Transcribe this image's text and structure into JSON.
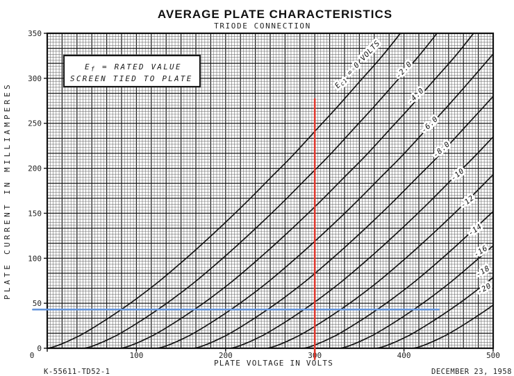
{
  "page": {
    "title": "AVERAGE PLATE CHARACTERISTICS",
    "subtitle": "TRIODE CONNECTION"
  },
  "note": {
    "line1_pre": "E",
    "line1_sub": "f",
    "line1_post": " = RATED VALUE",
    "line2": "SCREEN TIED TO PLATE"
  },
  "footer": {
    "drawing_number": "K-55611-TD52-1",
    "date": "DECEMBER 23, 1958"
  },
  "colors": {
    "background": "#ffffff",
    "curve": "#141414",
    "grid_minor": "#707070",
    "grid_major": "#1c1c1c",
    "frame": "#111111",
    "red_cursor": "#e0392e",
    "blue_cursor": "#6495dc"
  },
  "chart_data": {
    "type": "line",
    "title": "AVERAGE PLATE CHARACTERISTICS",
    "subtitle": "TRIODE CONNECTION",
    "xlabel": "PLATE VOLTAGE IN VOLTS",
    "ylabel": "PLATE CURRENT IN MILLIAMPERES",
    "xlim": [
      0,
      500
    ],
    "ylim": [
      0,
      350
    ],
    "xticks": [
      0,
      100,
      200,
      300,
      400,
      500
    ],
    "yticks": [
      0,
      50,
      100,
      150,
      200,
      250,
      300,
      350
    ],
    "grid": {
      "style": "fine graph paper",
      "minor_per_major": 5,
      "x_minor_divisions": 150,
      "y_minor_divisions": 105
    },
    "legend_note": "curve labels written along each curve; Ec1 is control-grid voltage",
    "series": [
      {
        "name": "Ec1 = 0 VOLTS",
        "ec1_volts": 0,
        "label_parts": {
          "pre": "E",
          "sub": "c1",
          "post": " = 0 VOLTS"
        },
        "points": [
          [
            0,
            0
          ],
          [
            5,
            1
          ],
          [
            10,
            2.5
          ],
          [
            20,
            6.4
          ],
          [
            30,
            11
          ],
          [
            40,
            16
          ],
          [
            60,
            28
          ],
          [
            80,
            41
          ],
          [
            100,
            55
          ],
          [
            125,
            74
          ],
          [
            150,
            95
          ],
          [
            175,
            117
          ],
          [
            200,
            140
          ],
          [
            225,
            164
          ],
          [
            250,
            189
          ],
          [
            275,
            214
          ],
          [
            300,
            241
          ],
          [
            325,
            268
          ],
          [
            350,
            296
          ],
          [
            375,
            324
          ],
          [
            396,
            350
          ]
        ]
      },
      {
        "name": "-2.0",
        "ec1_volts": -2,
        "points": [
          [
            41,
            0
          ],
          [
            46,
            1
          ],
          [
            51,
            2.5
          ],
          [
            61,
            6.4
          ],
          [
            71,
            11
          ],
          [
            81,
            16
          ],
          [
            101,
            28
          ],
          [
            121,
            41
          ],
          [
            141,
            55
          ],
          [
            166,
            74
          ],
          [
            191,
            95
          ],
          [
            216,
            117
          ],
          [
            241,
            140
          ],
          [
            266,
            164
          ],
          [
            291,
            189
          ],
          [
            316,
            214
          ],
          [
            341,
            241
          ],
          [
            366,
            268
          ],
          [
            391,
            296
          ],
          [
            416,
            324
          ],
          [
            437,
            350
          ]
        ]
      },
      {
        "name": "-4.0",
        "ec1_volts": -4,
        "points": [
          [
            82,
            0
          ],
          [
            87,
            1
          ],
          [
            92,
            2.5
          ],
          [
            102,
            6.4
          ],
          [
            112,
            11
          ],
          [
            122,
            16
          ],
          [
            142,
            28
          ],
          [
            162,
            41
          ],
          [
            182,
            55
          ],
          [
            207,
            74
          ],
          [
            232,
            95
          ],
          [
            257,
            117
          ],
          [
            282,
            140
          ],
          [
            307,
            164
          ],
          [
            332,
            189
          ],
          [
            357,
            214
          ],
          [
            382,
            241
          ],
          [
            407,
            268
          ],
          [
            432,
            296
          ],
          [
            457,
            324
          ],
          [
            478,
            350
          ]
        ]
      },
      {
        "name": "-6.0",
        "ec1_volts": -6,
        "points": [
          [
            123,
            0
          ],
          [
            128,
            1
          ],
          [
            133,
            2.5
          ],
          [
            143,
            6.4
          ],
          [
            153,
            11
          ],
          [
            163,
            16
          ],
          [
            183,
            28
          ],
          [
            203,
            41
          ],
          [
            223,
            55
          ],
          [
            248,
            74
          ],
          [
            273,
            95
          ],
          [
            298,
            117
          ],
          [
            323,
            140
          ],
          [
            348,
            164
          ],
          [
            373,
            189
          ],
          [
            398,
            214
          ],
          [
            423,
            241
          ],
          [
            448,
            268
          ],
          [
            473,
            296
          ],
          [
            500,
            327
          ]
        ]
      },
      {
        "name": "-8.0",
        "ec1_volts": -8,
        "points": [
          [
            164,
            0
          ],
          [
            169,
            1
          ],
          [
            174,
            2.5
          ],
          [
            184,
            6.4
          ],
          [
            194,
            11
          ],
          [
            204,
            16
          ],
          [
            224,
            28
          ],
          [
            244,
            41
          ],
          [
            264,
            55
          ],
          [
            289,
            74
          ],
          [
            314,
            95
          ],
          [
            339,
            117
          ],
          [
            364,
            140
          ],
          [
            389,
            164
          ],
          [
            414,
            189
          ],
          [
            439,
            214
          ],
          [
            464,
            241
          ],
          [
            489,
            268
          ],
          [
            500,
            280
          ]
        ]
      },
      {
        "name": "-10",
        "ec1_volts": -10,
        "points": [
          [
            205,
            0
          ],
          [
            210,
            1
          ],
          [
            215,
            2.5
          ],
          [
            225,
            6.4
          ],
          [
            235,
            11
          ],
          [
            245,
            16
          ],
          [
            265,
            28
          ],
          [
            285,
            41
          ],
          [
            305,
            55
          ],
          [
            330,
            74
          ],
          [
            355,
            95
          ],
          [
            380,
            117
          ],
          [
            405,
            140
          ],
          [
            430,
            164
          ],
          [
            455,
            189
          ],
          [
            480,
            214
          ],
          [
            500,
            235
          ]
        ]
      },
      {
        "name": "-12",
        "ec1_volts": -12,
        "points": [
          [
            246,
            0
          ],
          [
            251,
            1
          ],
          [
            256,
            2.5
          ],
          [
            266,
            6.4
          ],
          [
            276,
            11
          ],
          [
            286,
            16
          ],
          [
            306,
            28
          ],
          [
            326,
            41
          ],
          [
            346,
            55
          ],
          [
            371,
            74
          ],
          [
            396,
            95
          ],
          [
            421,
            117
          ],
          [
            446,
            140
          ],
          [
            471,
            164
          ],
          [
            496,
            189
          ],
          [
            500,
            193
          ]
        ]
      },
      {
        "name": "-14",
        "ec1_volts": -14,
        "points": [
          [
            287,
            0
          ],
          [
            292,
            1
          ],
          [
            297,
            2.5
          ],
          [
            307,
            6.4
          ],
          [
            317,
            11
          ],
          [
            327,
            16
          ],
          [
            347,
            28
          ],
          [
            367,
            41
          ],
          [
            387,
            55
          ],
          [
            412,
            74
          ],
          [
            437,
            95
          ],
          [
            462,
            117
          ],
          [
            487,
            140
          ],
          [
            500,
            152
          ]
        ]
      },
      {
        "name": "-16",
        "ec1_volts": -16,
        "points": [
          [
            328,
            0
          ],
          [
            333,
            1
          ],
          [
            338,
            2.5
          ],
          [
            348,
            6.4
          ],
          [
            358,
            11
          ],
          [
            368,
            16
          ],
          [
            388,
            28
          ],
          [
            408,
            41
          ],
          [
            428,
            55
          ],
          [
            453,
            74
          ],
          [
            478,
            95
          ],
          [
            500,
            114
          ]
        ]
      },
      {
        "name": "-18",
        "ec1_volts": -18,
        "points": [
          [
            369,
            0
          ],
          [
            374,
            1
          ],
          [
            379,
            2.5
          ],
          [
            389,
            6.4
          ],
          [
            399,
            11
          ],
          [
            409,
            16
          ],
          [
            429,
            28
          ],
          [
            449,
            41
          ],
          [
            469,
            55
          ],
          [
            494,
            74
          ],
          [
            500,
            79
          ]
        ]
      },
      {
        "name": "-20",
        "ec1_volts": -20,
        "points": [
          [
            410,
            0
          ],
          [
            415,
            1
          ],
          [
            420,
            2.5
          ],
          [
            430,
            6.4
          ],
          [
            440,
            11
          ],
          [
            450,
            16
          ],
          [
            470,
            28
          ],
          [
            490,
            41
          ],
          [
            500,
            48
          ]
        ]
      }
    ],
    "annotations": {
      "red_vline": {
        "x_volts": 300,
        "from_ma": -12,
        "to_ma": 277,
        "color": "#e0392e"
      },
      "blue_hline": {
        "y_ma": 43,
        "from_volts": -16,
        "to_volts": 439,
        "color": "#6495dc"
      }
    }
  }
}
